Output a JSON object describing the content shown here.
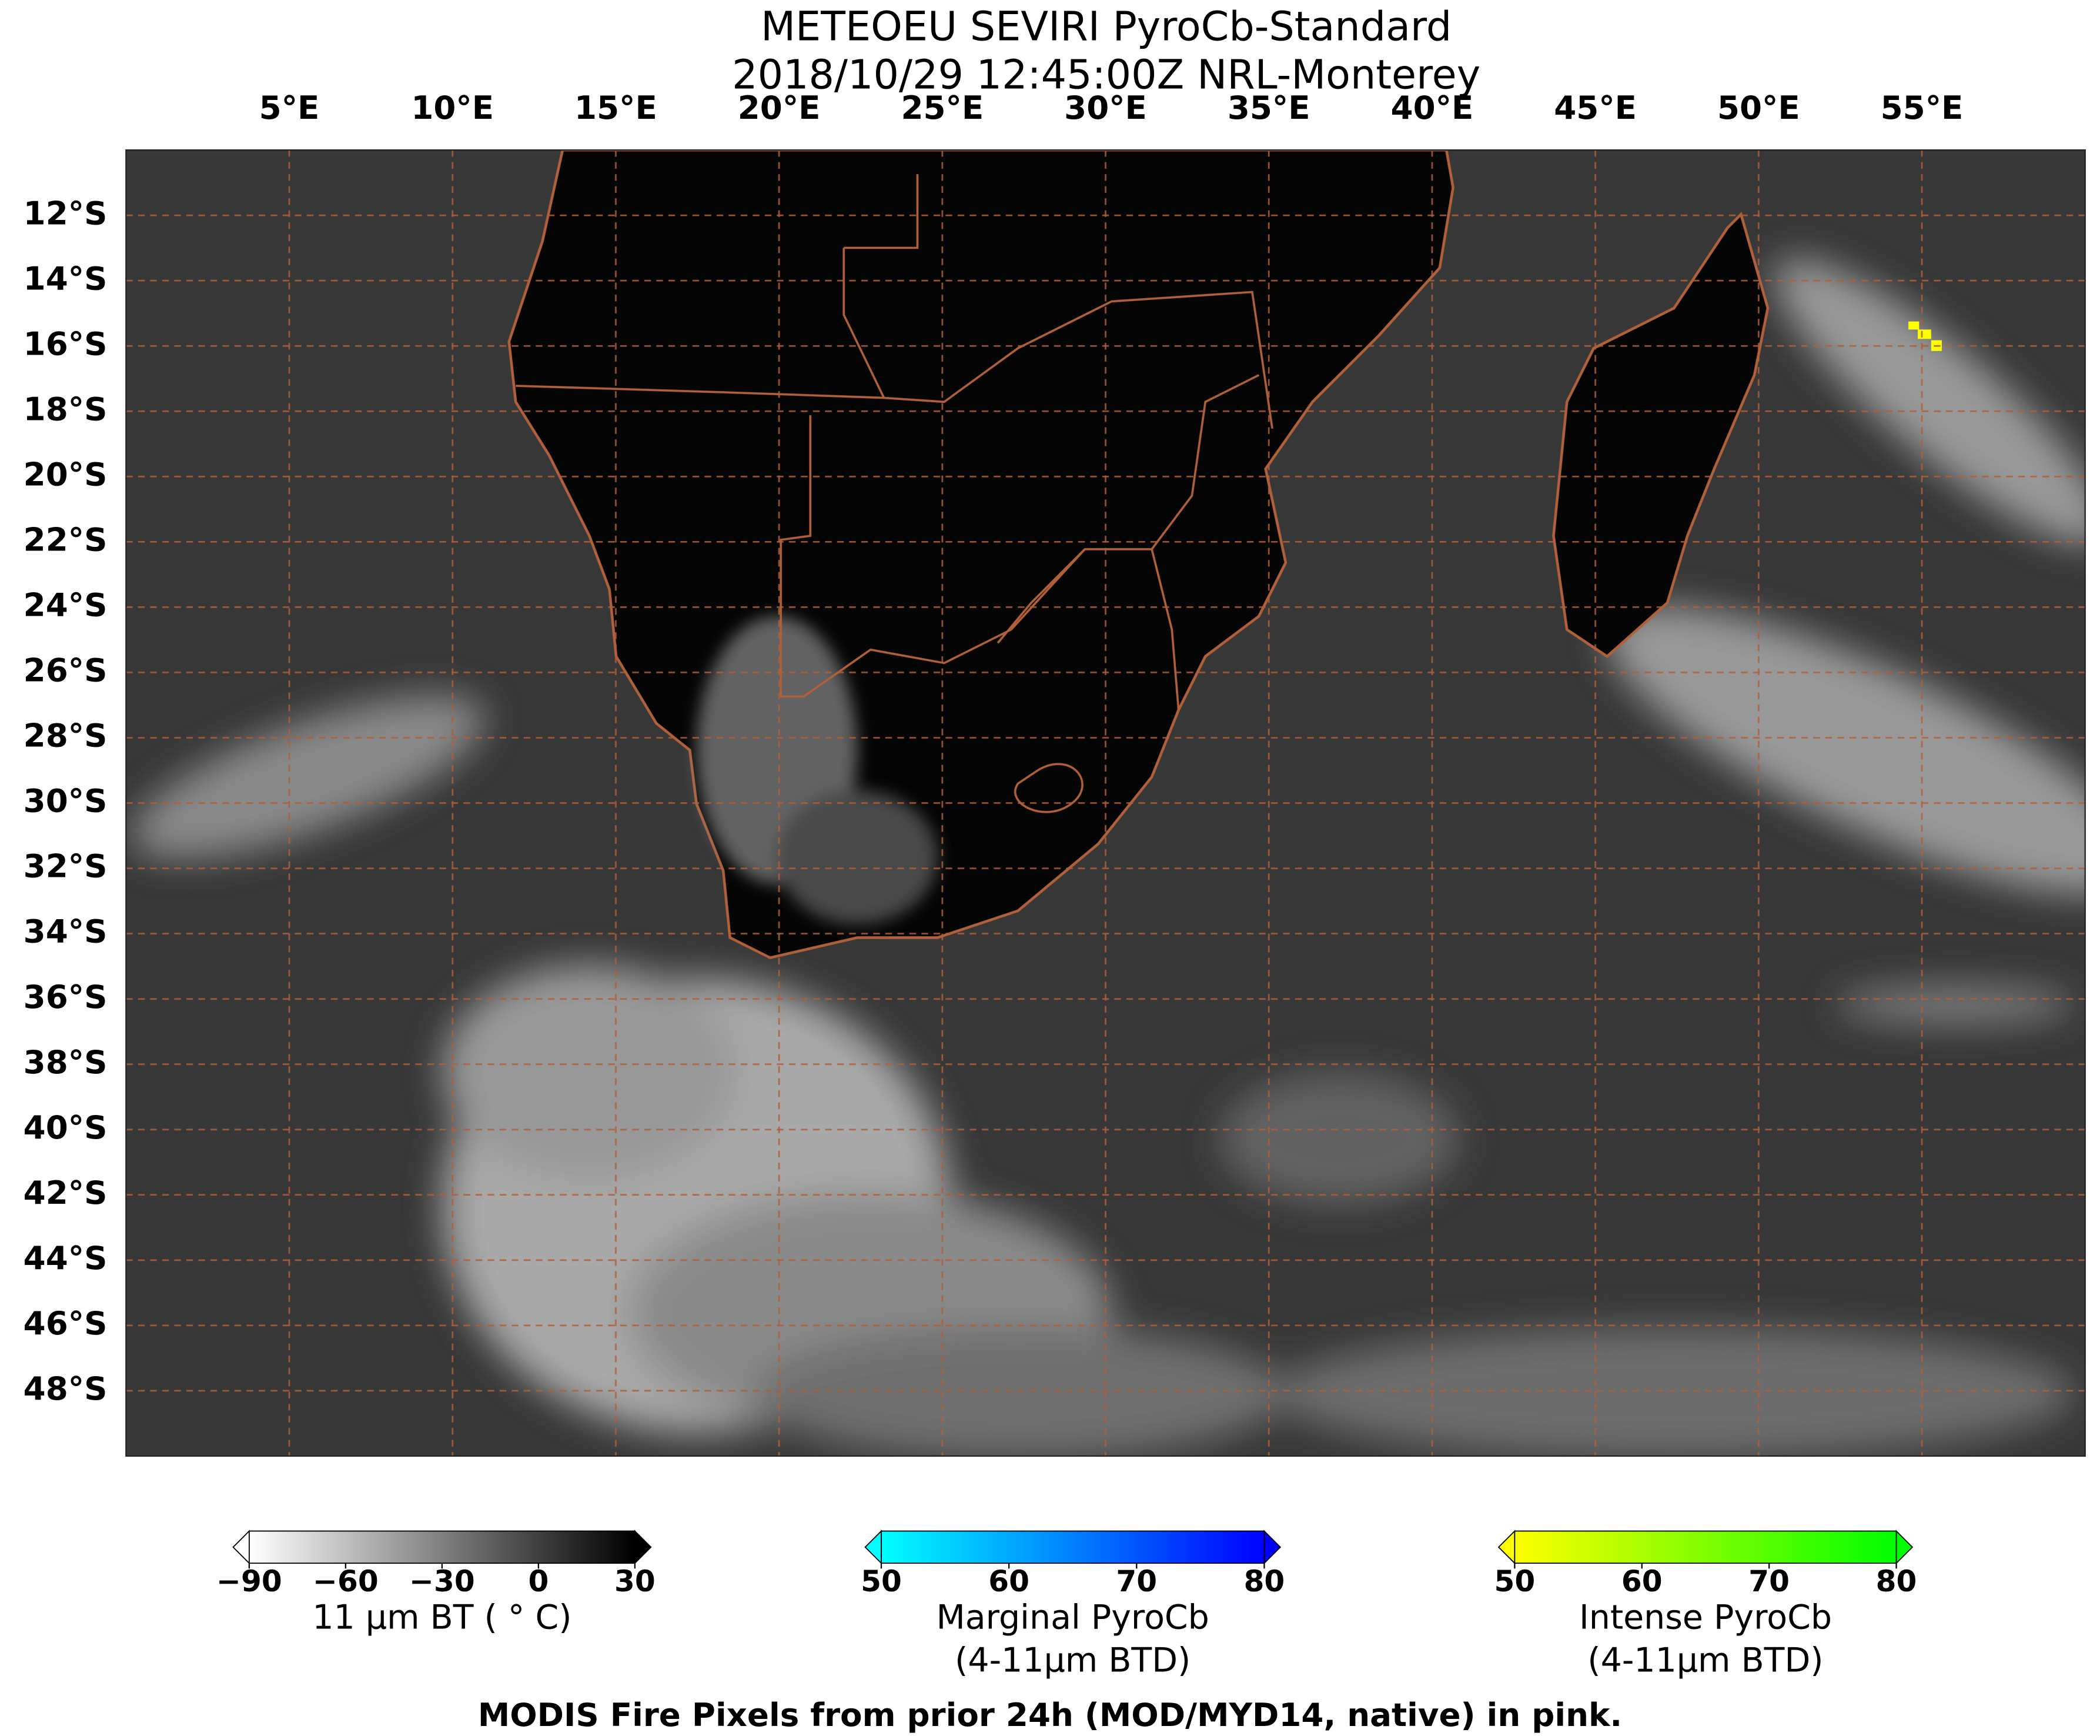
{
  "title": "METEOEU SEVIRI PyroCb-Standard",
  "subtitle": "2018/10/29 12:45:00Z NRL-Monterey",
  "lon_range": [
    0,
    60
  ],
  "lat_range": [
    -10,
    -50
  ],
  "lon_ticks": [
    {
      "value": 5,
      "label": "5°E"
    },
    {
      "value": 10,
      "label": "10°E"
    },
    {
      "value": 15,
      "label": "15°E"
    },
    {
      "value": 20,
      "label": "20°E"
    },
    {
      "value": 25,
      "label": "25°E"
    },
    {
      "value": 30,
      "label": "30°E"
    },
    {
      "value": 35,
      "label": "35°E"
    },
    {
      "value": 40,
      "label": "40°E"
    },
    {
      "value": 45,
      "label": "45°E"
    },
    {
      "value": 50,
      "label": "50°E"
    },
    {
      "value": 55,
      "label": "55°E"
    }
  ],
  "lat_ticks": [
    {
      "value": -12,
      "label": "12°S"
    },
    {
      "value": -14,
      "label": "14°S"
    },
    {
      "value": -16,
      "label": "16°S"
    },
    {
      "value": -18,
      "label": "18°S"
    },
    {
      "value": -20,
      "label": "20°S"
    },
    {
      "value": -22,
      "label": "22°S"
    },
    {
      "value": -24,
      "label": "24°S"
    },
    {
      "value": -26,
      "label": "26°S"
    },
    {
      "value": -28,
      "label": "28°S"
    },
    {
      "value": -30,
      "label": "30°S"
    },
    {
      "value": -32,
      "label": "32°S"
    },
    {
      "value": -34,
      "label": "34°S"
    },
    {
      "value": -36,
      "label": "36°S"
    },
    {
      "value": -38,
      "label": "38°S"
    },
    {
      "value": -40,
      "label": "40°S"
    },
    {
      "value": -42,
      "label": "42°S"
    },
    {
      "value": -44,
      "label": "44°S"
    },
    {
      "value": -46,
      "label": "46°S"
    },
    {
      "value": -48,
      "label": "48°S"
    }
  ],
  "colorbars": [
    {
      "range": [
        -90,
        30
      ],
      "colors": [
        "#ffffff",
        "#000000"
      ],
      "ticks": [
        {
          "value": -90,
          "label": "−90"
        },
        {
          "value": -60,
          "label": "−60"
        },
        {
          "value": -30,
          "label": "−30"
        },
        0,
        30
      ],
      "label": [
        "11 μm BT ( ° C)"
      ]
    },
    {
      "range": [
        50,
        80
      ],
      "colors": [
        "#00ffff",
        "#0000ff"
      ],
      "ticks": [
        50,
        60,
        70,
        80
      ],
      "label": [
        "Marginal PyroCb",
        "(4-11μm BTD)"
      ]
    },
    {
      "range": [
        50,
        80
      ],
      "colors": [
        "#ffff00",
        "#00ff00"
      ],
      "ticks": [
        50,
        60,
        70,
        80
      ],
      "label": [
        "Intense PyroCb",
        "(4-11μm BTD)"
      ]
    }
  ],
  "footer": "MODIS Fire Pixels from prior 24h (MOD/MYD14, native) in pink."
}
